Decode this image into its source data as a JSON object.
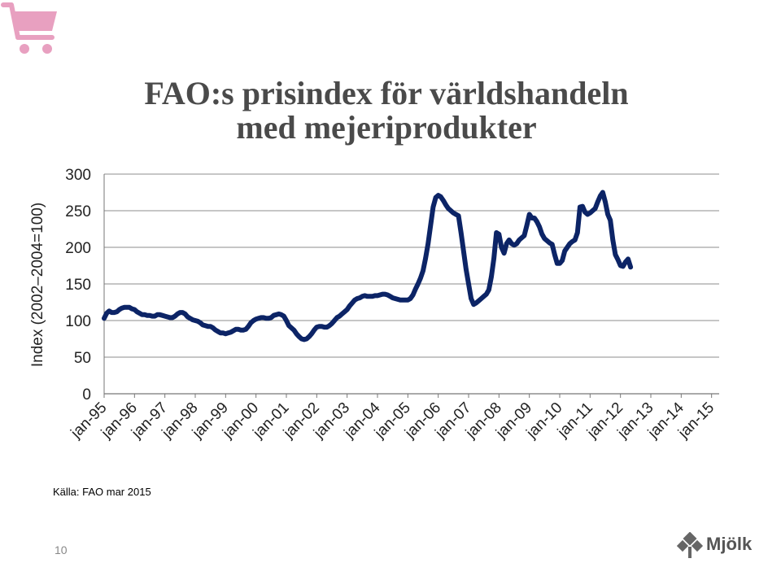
{
  "slide": {
    "title_line1": "FAO:s prisindex för världshandeln",
    "title_line2": "med mejeriprodukter",
    "source": "Källa: FAO  mar 2015",
    "page_number": "10",
    "brand": "Mjölk",
    "cart_icon": "shopping-cart-icon",
    "accent_color": "#e8a0c0"
  },
  "chart_data": {
    "type": "line",
    "title": "FAO:s prisindex för världshandeln med mejeriprodukter",
    "ylabel": "Index (2002–2004=100)",
    "xlabel": "",
    "ylim": [
      0,
      300
    ],
    "yticks": [
      0,
      50,
      100,
      150,
      200,
      250,
      300
    ],
    "grid": true,
    "legend": "none",
    "line_color": "#0c2466",
    "x_tick_labels": [
      "jan-95",
      "jan-96",
      "jan-97",
      "jan-98",
      "jan-99",
      "jan-00",
      "jan-01",
      "jan-02",
      "jan-03",
      "jan-04",
      "jan-05",
      "jan-06",
      "jan-07",
      "jan-08",
      "jan-09",
      "jan-10",
      "jan-11",
      "jan-12",
      "jan-13",
      "jan-14",
      "jan-15"
    ],
    "x_start": "jan-95",
    "series": [
      {
        "name": "",
        "values": [
          103,
          110,
          113,
          111,
          111,
          112,
          115,
          117,
          118,
          118,
          118,
          116,
          115,
          112,
          110,
          108,
          108,
          107,
          107,
          106,
          106,
          108,
          108,
          107,
          106,
          105,
          104,
          104,
          106,
          109,
          111,
          111,
          109,
          105,
          103,
          101,
          100,
          99,
          97,
          94,
          93,
          92,
          92,
          90,
          87,
          85,
          83,
          83,
          82,
          83,
          84,
          86,
          88,
          88,
          87,
          87,
          88,
          92,
          97,
          100,
          102,
          103,
          104,
          104,
          103,
          103,
          104,
          107,
          108,
          109,
          108,
          106,
          100,
          93,
          90,
          87,
          82,
          78,
          75,
          74,
          75,
          78,
          82,
          87,
          91,
          92,
          92,
          91,
          91,
          93,
          96,
          100,
          104,
          106,
          109,
          112,
          115,
          120,
          124,
          128,
          130,
          131,
          133,
          134,
          133,
          133,
          133,
          134,
          134,
          135,
          136,
          136,
          135,
          133,
          131,
          130,
          129,
          128,
          128,
          128,
          128,
          130,
          135,
          143,
          150,
          158,
          168,
          185,
          205,
          230,
          255,
          268,
          271,
          269,
          264,
          258,
          253,
          250,
          247,
          245,
          243,
          220,
          195,
          170,
          150,
          130,
          122,
          124,
          127,
          130,
          133,
          136,
          142,
          160,
          185,
          220,
          218,
          200,
          192,
          205,
          210,
          205,
          203,
          205,
          210,
          213,
          216,
          230,
          245,
          240,
          240,
          235,
          228,
          218,
          212,
          209,
          206,
          204,
          190,
          178,
          178,
          182,
          195,
          200,
          205,
          208,
          210,
          220,
          255,
          256,
          248,
          245,
          247,
          250,
          253,
          262,
          270,
          275,
          262,
          245,
          237,
          210,
          190,
          183,
          175,
          174,
          180,
          184,
          173
        ]
      }
    ]
  }
}
